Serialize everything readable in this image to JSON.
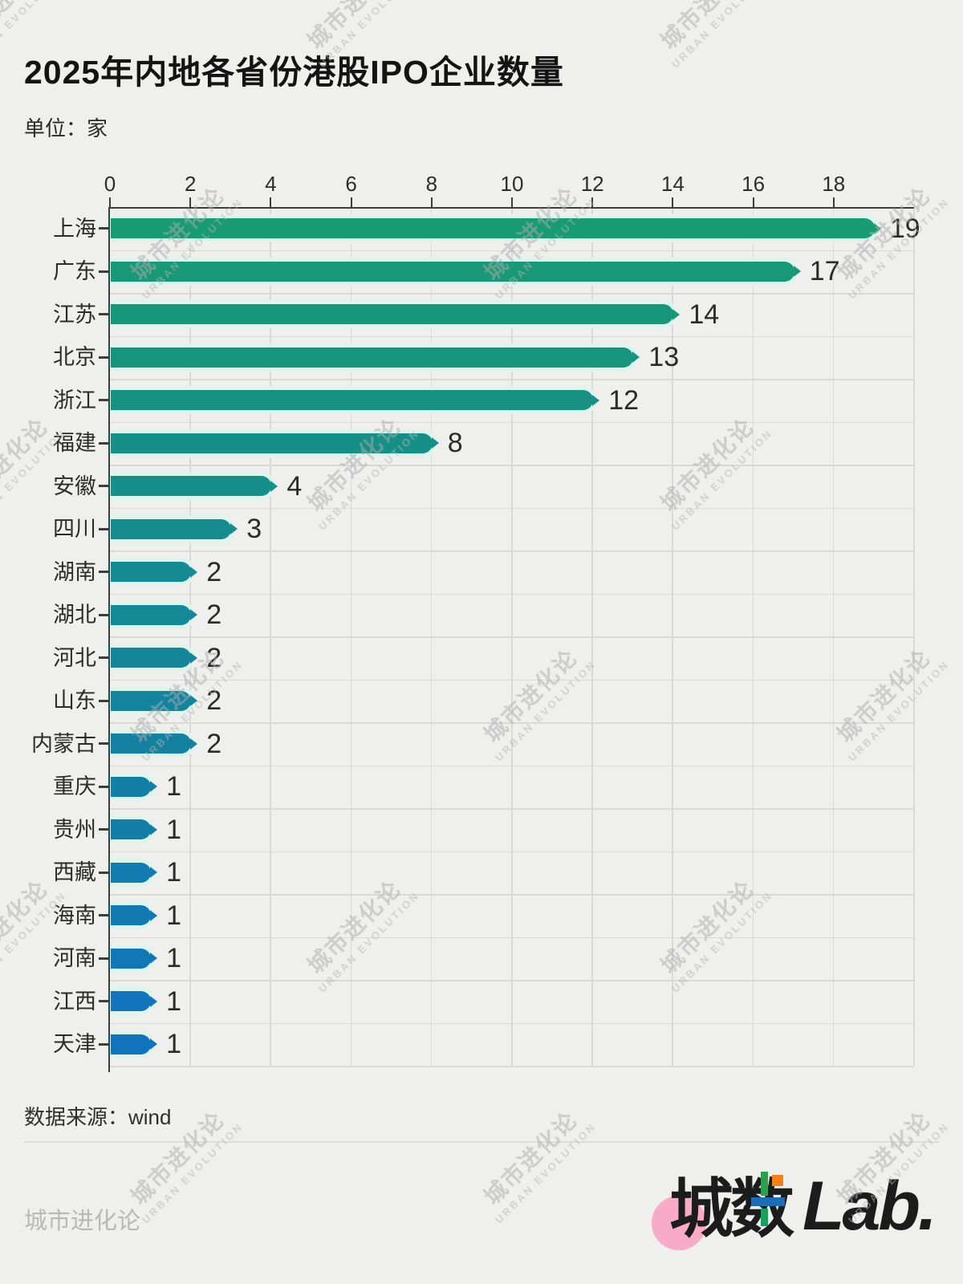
{
  "page": {
    "background": "#efefee"
  },
  "header": {
    "title": "2025年内地各省份港股IPO企业数量",
    "unit_label": "单位：家"
  },
  "chart_data": {
    "type": "bar",
    "orientation": "horizontal",
    "title": "2025年内地各省份港股IPO企业数量",
    "unit": "家",
    "categories": [
      "上海",
      "广东",
      "江苏",
      "北京",
      "浙江",
      "福建",
      "安徽",
      "四川",
      "湖南",
      "湖北",
      "河北",
      "山东",
      "内蒙古",
      "重庆",
      "贵州",
      "西藏",
      "海南",
      "河南",
      "江西",
      "天津"
    ],
    "values": [
      19,
      17,
      14,
      13,
      12,
      8,
      4,
      3,
      2,
      2,
      2,
      2,
      2,
      1,
      1,
      1,
      1,
      1,
      1,
      1
    ],
    "bar_colors": [
      "#189A72",
      "#189876",
      "#17967A",
      "#17947E",
      "#179282",
      "#169086",
      "#168E8A",
      "#168C8E",
      "#158A92",
      "#158896",
      "#15859A",
      "#14839D",
      "#1481A1",
      "#147FA5",
      "#137DA9",
      "#137BAD",
      "#1379B1",
      "#1277B5",
      "#1275B9",
      "#1273BD"
    ],
    "bar_glow_color": "#def5ee",
    "x_ticks": [
      0,
      2,
      4,
      6,
      8,
      10,
      12,
      14,
      16,
      18
    ],
    "xlim": [
      0,
      20
    ],
    "grid": true,
    "xlabel": "",
    "ylabel": ""
  },
  "footer": {
    "source_label": "数据来源：wind",
    "brand_left": "城市进化论",
    "logo": {
      "text_cn": "城数",
      "text_latin": "Lab.",
      "circle_color": "#f7abc6",
      "accent_orange": "#f08119",
      "accent_green": "#2f9e4e",
      "accent_blue": "#1e6db4",
      "accent_teal": "#18a05c"
    }
  },
  "watermark": {
    "line1": "城市进化论",
    "line2": "URBAN EVOLUTION"
  }
}
